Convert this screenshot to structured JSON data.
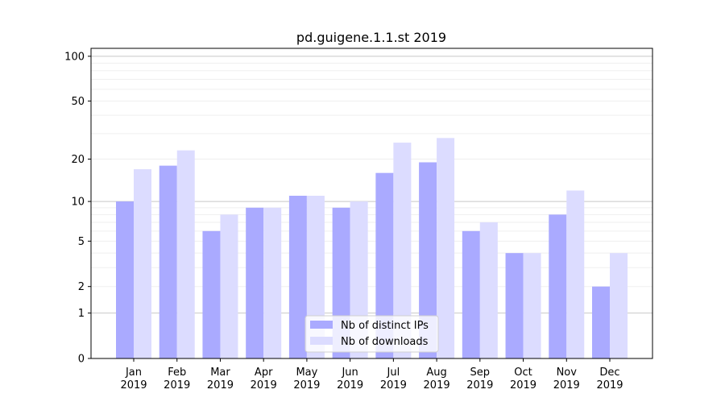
{
  "chart_data": {
    "type": "bar",
    "title": "pd.guigene.1.1.st 2019",
    "xlabel": "",
    "ylabel": "",
    "yscale": "symlog",
    "ylim": [
      0,
      113
    ],
    "yticks": [
      0,
      1,
      2,
      5,
      10,
      20,
      50,
      100
    ],
    "grid": true,
    "legend_position": "bottom-center",
    "categories": [
      "Jan\n2019",
      "Feb\n2019",
      "Mar\n2019",
      "Apr\n2019",
      "May\n2019",
      "Jun\n2019",
      "Jul\n2019",
      "Aug\n2019",
      "Sep\n2019",
      "Oct\n2019",
      "Nov\n2019",
      "Dec\n2019"
    ],
    "series": [
      {
        "name": "Nb of distinct IPs",
        "color": "#aaaaff",
        "values": [
          10,
          18,
          6,
          9,
          11,
          9,
          16,
          19,
          6,
          4,
          8,
          2
        ]
      },
      {
        "name": "Nb of downloads",
        "color": "#dcdcff",
        "values": [
          17,
          23,
          8,
          9,
          11,
          10,
          26,
          28,
          7,
          4,
          12,
          4
        ]
      }
    ]
  }
}
